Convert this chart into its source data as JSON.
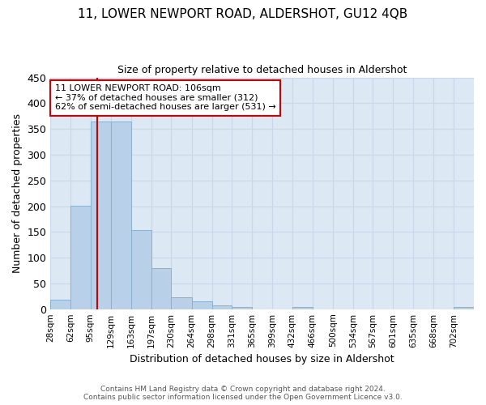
{
  "title": "11, LOWER NEWPORT ROAD, ALDERSHOT, GU12 4QB",
  "subtitle": "Size of property relative to detached houses in Aldershot",
  "xlabel": "Distribution of detached houses by size in Aldershot",
  "ylabel": "Number of detached properties",
  "bin_labels": [
    "28sqm",
    "62sqm",
    "95sqm",
    "129sqm",
    "163sqm",
    "197sqm",
    "230sqm",
    "264sqm",
    "298sqm",
    "331sqm",
    "365sqm",
    "399sqm",
    "432sqm",
    "466sqm",
    "500sqm",
    "534sqm",
    "567sqm",
    "601sqm",
    "635sqm",
    "668sqm",
    "702sqm"
  ],
  "bin_edges": [
    28,
    62,
    95,
    129,
    163,
    197,
    230,
    264,
    298,
    331,
    365,
    399,
    432,
    466,
    500,
    534,
    567,
    601,
    635,
    668,
    702,
    736
  ],
  "bar_heights": [
    18,
    201,
    365,
    365,
    153,
    79,
    23,
    15,
    8,
    5,
    0,
    0,
    4,
    0,
    0,
    0,
    0,
    0,
    0,
    0,
    4
  ],
  "bar_color": "#b8d0e8",
  "bar_edge_color": "#88b0d0",
  "grid_color": "#c8d8e8",
  "bg_color": "#dce8f4",
  "vline_x": 106,
  "vline_color": "#cc0000",
  "ylim": [
    0,
    450
  ],
  "yticks": [
    0,
    50,
    100,
    150,
    200,
    250,
    300,
    350,
    400,
    450
  ],
  "annotation_line1": "11 LOWER NEWPORT ROAD: 106sqm",
  "annotation_line2": "← 37% of detached houses are smaller (312)",
  "annotation_line3": "62% of semi-detached houses are larger (531) →",
  "annotation_box_edge": "#cc0000",
  "footer_line1": "Contains HM Land Registry data © Crown copyright and database right 2024.",
  "footer_line2": "Contains public sector information licensed under the Open Government Licence v3.0."
}
